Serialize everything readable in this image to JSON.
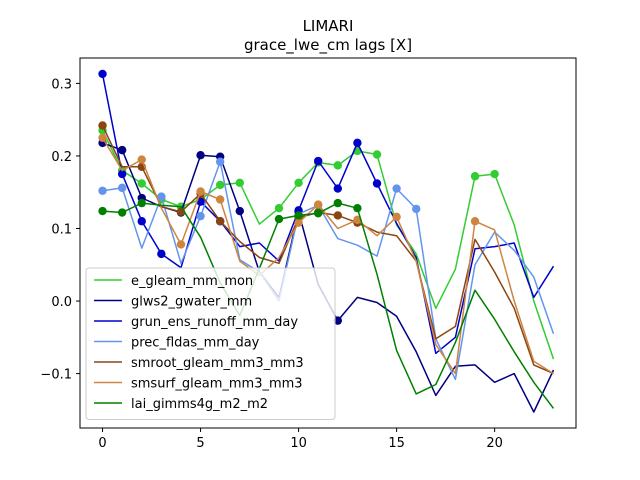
{
  "chart_data": {
    "type": "line",
    "title": "LIMARI",
    "subtitle": "grace_lwe_cm lags [X]",
    "xlabel": "",
    "ylabel": "",
    "xlim": [
      -1.15,
      24.15
    ],
    "ylim": [
      -0.175,
      0.335
    ],
    "xticks": [
      0,
      5,
      10,
      15,
      20
    ],
    "yticks": [
      -0.1,
      0.0,
      0.1,
      0.2,
      0.3
    ],
    "ytick_labels": [
      "−0.1",
      "0.0",
      "0.1",
      "0.2",
      "0.3"
    ],
    "legend_position": "lower-left",
    "x": [
      0,
      1,
      2,
      3,
      4,
      5,
      6,
      7,
      8,
      9,
      10,
      11,
      12,
      13,
      14,
      15,
      16,
      17,
      18,
      19,
      20,
      21,
      22,
      23
    ],
    "series": [
      {
        "name": "e_gleam_mm_mon",
        "color": "#32cd32",
        "values": [
          0.235,
          0.18,
          0.162,
          0.14,
          0.13,
          0.14,
          0.16,
          0.163,
          0.106,
          0.128,
          0.163,
          0.191,
          0.187,
          0.207,
          0.202,
          0.105,
          0.065,
          -0.01,
          0.044,
          0.172,
          0.175,
          0.105,
          0.0,
          -0.08
        ],
        "markers": [
          0,
          1,
          2,
          3,
          4,
          5,
          6,
          7,
          9,
          10,
          11,
          12,
          13,
          14,
          19,
          20
        ]
      },
      {
        "name": "glws2_gwater_mm",
        "color": "#000080",
        "values": [
          0.218,
          0.208,
          0.142,
          0.13,
          0.122,
          0.201,
          0.199,
          0.124,
          0.04,
          0.005,
          0.123,
          0.023,
          -0.027,
          0.005,
          -0.002,
          -0.021,
          -0.07,
          -0.13,
          -0.09,
          -0.088,
          -0.112,
          -0.1,
          -0.153,
          -0.095
        ],
        "markers": [
          0,
          1,
          2,
          4,
          5,
          6,
          7,
          10,
          12
        ]
      },
      {
        "name": "grun_ens_runoff_mm_day",
        "color": "#0000cd",
        "values": [
          0.313,
          0.175,
          0.11,
          0.065,
          0.046,
          0.137,
          0.11,
          0.075,
          0.08,
          0.055,
          0.125,
          0.193,
          0.155,
          0.218,
          0.162,
          0.107,
          0.06,
          -0.072,
          -0.05,
          0.072,
          0.075,
          0.08,
          0.005,
          0.048
        ],
        "markers": [
          0,
          1,
          2,
          3,
          5,
          6,
          10,
          11,
          12,
          13,
          14
        ]
      },
      {
        "name": "prec_fldas_mm_day",
        "color": "#6495ed",
        "values": [
          0.152,
          0.156,
          0.073,
          0.144,
          0.052,
          0.117,
          0.192,
          0.057,
          0.04,
          0.0,
          0.12,
          0.132,
          0.086,
          0.077,
          0.062,
          0.155,
          0.127,
          -0.052,
          -0.108,
          0.05,
          0.095,
          0.07,
          0.033,
          -0.045
        ],
        "markers": [
          0,
          1,
          3,
          5,
          6,
          11,
          15,
          16
        ]
      },
      {
        "name": "smroot_gleam_mm3_mm3",
        "color": "#8b4513",
        "values": [
          0.242,
          0.185,
          0.185,
          0.13,
          0.123,
          0.148,
          0.11,
          0.082,
          0.06,
          0.052,
          0.115,
          0.122,
          0.118,
          0.108,
          0.095,
          0.09,
          0.055,
          -0.052,
          -0.035,
          0.085,
          0.04,
          -0.01,
          -0.088,
          -0.1
        ],
        "markers": [
          0,
          2,
          4,
          5,
          6,
          10,
          11,
          12,
          13
        ]
      },
      {
        "name": "smsurf_gleam_mm3_mm3",
        "color": "#cd853f",
        "values": [
          0.225,
          0.18,
          0.195,
          0.128,
          0.078,
          0.151,
          0.14,
          0.055,
          0.035,
          0.06,
          0.108,
          0.133,
          0.1,
          0.112,
          0.09,
          0.116,
          0.055,
          -0.06,
          -0.1,
          0.11,
          0.098,
          0.0,
          -0.083,
          -0.1
        ],
        "markers": [
          0,
          2,
          4,
          5,
          6,
          10,
          11,
          13,
          15,
          19
        ]
      },
      {
        "name": "lai_gimms4g_m2_m2",
        "color": "#008000",
        "values": [
          0.124,
          0.122,
          0.135,
          0.132,
          0.13,
          0.088,
          0.025,
          -0.02,
          0.045,
          0.113,
          0.118,
          0.121,
          0.135,
          0.128,
          0.037,
          -0.068,
          -0.128,
          -0.115,
          -0.057,
          0.015,
          -0.025,
          -0.07,
          -0.112,
          -0.148
        ],
        "markers": [
          0,
          1,
          2,
          9,
          10,
          11,
          12,
          13
        ]
      }
    ]
  }
}
